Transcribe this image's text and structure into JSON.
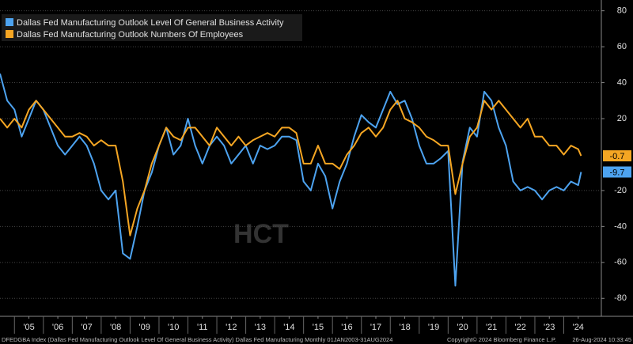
{
  "chart_data": {
    "type": "line",
    "legend_position": "upper left",
    "watermark": "HCT",
    "x": [
      2004.5,
      2004.75,
      2005,
      2005.25,
      2005.5,
      2005.75,
      2006,
      2006.25,
      2006.5,
      2006.75,
      2007,
      2007.25,
      2007.5,
      2007.75,
      2008,
      2008.25,
      2008.5,
      2008.75,
      2009,
      2009.25,
      2009.5,
      2009.75,
      2010,
      2010.25,
      2010.5,
      2010.75,
      2011,
      2011.25,
      2011.5,
      2011.75,
      2012,
      2012.25,
      2012.5,
      2012.75,
      2013,
      2013.25,
      2013.5,
      2013.75,
      2014,
      2014.25,
      2014.5,
      2014.75,
      2015,
      2015.25,
      2015.5,
      2015.75,
      2016,
      2016.25,
      2016.5,
      2016.75,
      2017,
      2017.25,
      2017.5,
      2017.75,
      2018,
      2018.25,
      2018.5,
      2018.75,
      2019,
      2019.25,
      2019.5,
      2019.75,
      2020,
      2020.25,
      2020.5,
      2020.75,
      2021,
      2021.25,
      2021.5,
      2021.75,
      2022,
      2022.25,
      2022.5,
      2022.75,
      2023,
      2023.25,
      2023.5,
      2023.75,
      2024,
      2024.25,
      2024.5,
      2024.6
    ],
    "series": [
      {
        "name": "Dallas Fed Manufacturing Outlook Level Of General Business Activity",
        "color": "#4da3f0",
        "values": [
          45,
          30,
          25,
          10,
          20,
          30,
          25,
          15,
          5,
          0,
          5,
          10,
          5,
          -5,
          -20,
          -25,
          -20,
          -55,
          -58,
          -40,
          -20,
          -10,
          5,
          15,
          0,
          5,
          20,
          5,
          -5,
          5,
          10,
          5,
          -5,
          0,
          5,
          -5,
          5,
          3,
          5,
          10,
          10,
          8,
          -15,
          -20,
          -5,
          -12,
          -30,
          -15,
          -5,
          10,
          22,
          18,
          15,
          25,
          35,
          28,
          30,
          20,
          5,
          -5,
          -5,
          -2,
          2,
          -73,
          -4,
          15,
          10,
          35,
          30,
          15,
          5,
          -15,
          -20,
          -18,
          -20,
          -25,
          -20,
          -18,
          -20,
          -15,
          -17,
          -9.7
        ]
      },
      {
        "name": "Dallas Fed Manufacturing Outlook Numbers Of Employees",
        "color": "#f5a623",
        "values": [
          20,
          15,
          20,
          15,
          25,
          30,
          25,
          20,
          15,
          10,
          10,
          12,
          10,
          5,
          8,
          5,
          5,
          -15,
          -45,
          -30,
          -20,
          -5,
          5,
          15,
          10,
          8,
          15,
          15,
          10,
          5,
          15,
          10,
          5,
          10,
          5,
          8,
          10,
          12,
          10,
          15,
          15,
          12,
          -5,
          -5,
          5,
          -5,
          -5,
          -8,
          0,
          5,
          12,
          15,
          10,
          15,
          25,
          30,
          20,
          18,
          15,
          10,
          8,
          5,
          5,
          -22,
          -5,
          10,
          15,
          30,
          25,
          30,
          25,
          20,
          15,
          20,
          10,
          10,
          5,
          5,
          0,
          5,
          3,
          -0.7
        ]
      }
    ],
    "xlim": [
      2004.5,
      2025.3
    ],
    "xticks": [
      {
        "value": 2005.5,
        "label": "'05"
      },
      {
        "value": 2006.5,
        "label": "'06"
      },
      {
        "value": 2007.5,
        "label": "'07"
      },
      {
        "value": 2008.5,
        "label": "'08"
      },
      {
        "value": 2009.5,
        "label": "'09"
      },
      {
        "value": 2010.5,
        "label": "'10"
      },
      {
        "value": 2011.5,
        "label": "'11"
      },
      {
        "value": 2012.5,
        "label": "'12"
      },
      {
        "value": 2013.5,
        "label": "'13"
      },
      {
        "value": 2014.5,
        "label": "'14"
      },
      {
        "value": 2015.5,
        "label": "'15"
      },
      {
        "value": 2016.5,
        "label": "'16"
      },
      {
        "value": 2017.5,
        "label": "'17"
      },
      {
        "value": 2018.5,
        "label": "'18"
      },
      {
        "value": 2019.5,
        "label": "'19"
      },
      {
        "value": 2020.5,
        "label": "'20"
      },
      {
        "value": 2021.5,
        "label": "'21"
      },
      {
        "value": 2022.5,
        "label": "'22"
      },
      {
        "value": 2023.5,
        "label": "'23"
      },
      {
        "value": 2024.5,
        "label": "'24"
      }
    ],
    "ylim": [
      -90,
      86
    ],
    "yticks": [
      -80,
      -60,
      -40,
      -20,
      20,
      40,
      60,
      80
    ],
    "grid": true,
    "footer": [
      "DFEDGBA Index (Dallas Fed Manufacturing Outlook Level Of General Business Activity) Dallas Fed Manufacturing  Monthly 01JAN2003-31AUG2024",
      "Copyright© 2024 Bloomberg Finance L.P.",
      "26-Aug-2024 10:33:45"
    ]
  }
}
